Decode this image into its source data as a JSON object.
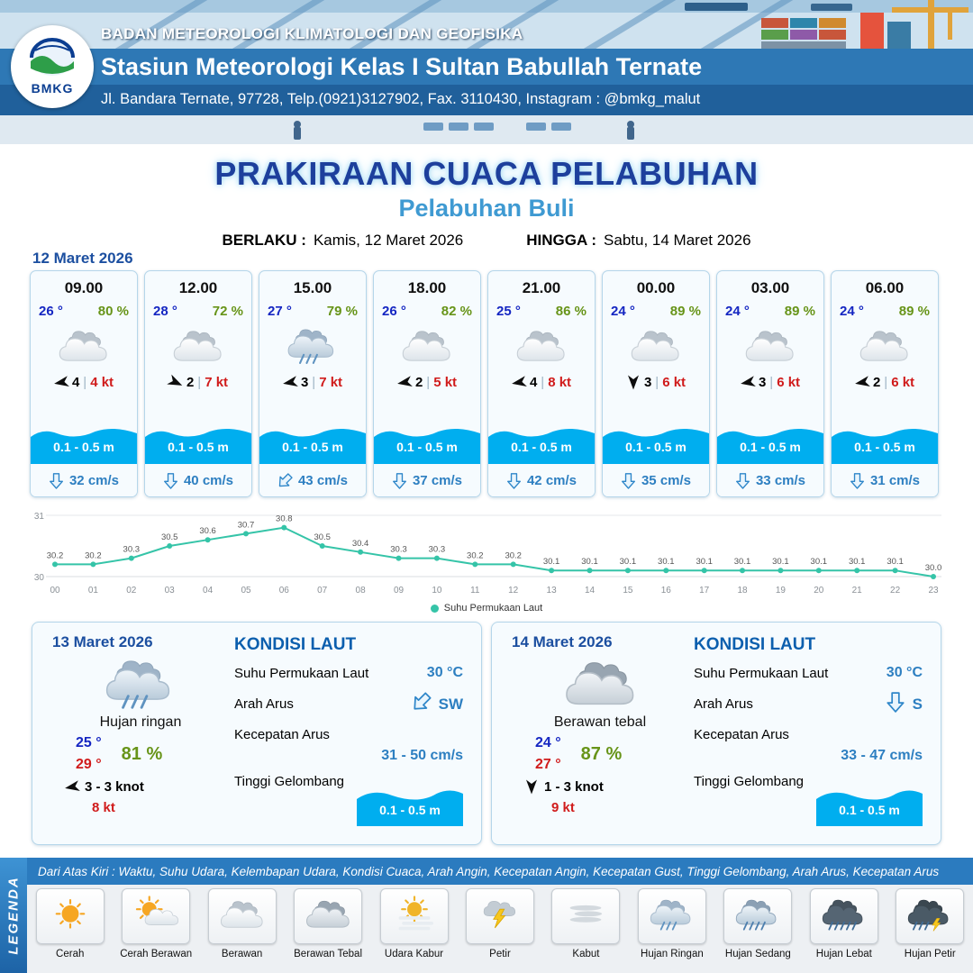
{
  "header": {
    "logo_text": "BMKG",
    "org_line": "BADAN METEOROLOGI KLIMATOLOGI DAN GEOFISIKA",
    "station_line": "Stasiun Meteorologi Kelas I Sultan Babullah Ternate",
    "address_line": "Jl. Bandara Ternate, 97728, Telp.(0921)3127902, Fax. 3110430, Instagram : @bmkg_malut"
  },
  "title": {
    "main": "PRAKIRAAN CUACA PELABUHAN",
    "subtitle": "Pelabuhan Buli",
    "berlaku_label": "BERLAKU :",
    "berlaku_value": "Kamis, 12 Maret 2026",
    "hingga_label": "HINGGA :",
    "hingga_value": "Sabtu, 14 Maret 2026"
  },
  "forecast_date": "12 Maret 2026",
  "hourly": [
    {
      "time": "09.00",
      "temp": "26 °",
      "humidity": "80 %",
      "icon": "berawan",
      "wind_num": "4",
      "wind_kt": "4 kt",
      "wind_dir_deg": 170,
      "wave": "0.1 - 0.5 m",
      "current": "32 cm/s",
      "current_dir_deg": 0
    },
    {
      "time": "12.00",
      "temp": "28 °",
      "humidity": "72 %",
      "icon": "berawan",
      "wind_num": "2",
      "wind_kt": "7 kt",
      "wind_dir_deg": 25,
      "wave": "0.1 - 0.5 m",
      "current": "40 cm/s",
      "current_dir_deg": 0
    },
    {
      "time": "15.00",
      "temp": "27 °",
      "humidity": "79 %",
      "icon": "hujan-ringan",
      "wind_num": "3",
      "wind_kt": "7 kt",
      "wind_dir_deg": 170,
      "wave": "0.1 - 0.5 m",
      "current": "43 cm/s",
      "current_dir_deg": 45
    },
    {
      "time": "18.00",
      "temp": "26 °",
      "humidity": "82 %",
      "icon": "berawan",
      "wind_num": "2",
      "wind_kt": "5 kt",
      "wind_dir_deg": 170,
      "wave": "0.1 - 0.5 m",
      "current": "37 cm/s",
      "current_dir_deg": 0
    },
    {
      "time": "21.00",
      "temp": "25 °",
      "humidity": "86 %",
      "icon": "berawan",
      "wind_num": "4",
      "wind_kt": "8 kt",
      "wind_dir_deg": 170,
      "wave": "0.1 - 0.5 m",
      "current": "42 cm/s",
      "current_dir_deg": 0
    },
    {
      "time": "00.00",
      "temp": "24 °",
      "humidity": "89 %",
      "icon": "berawan",
      "wind_num": "3",
      "wind_kt": "6 kt",
      "wind_dir_deg": 90,
      "wave": "0.1 - 0.5 m",
      "current": "35 cm/s",
      "current_dir_deg": 0
    },
    {
      "time": "03.00",
      "temp": "24 °",
      "humidity": "89 %",
      "icon": "berawan",
      "wind_num": "3",
      "wind_kt": "6 kt",
      "wind_dir_deg": 170,
      "wave": "0.1 - 0.5 m",
      "current": "33 cm/s",
      "current_dir_deg": 0
    },
    {
      "time": "06.00",
      "temp": "24 °",
      "humidity": "89 %",
      "icon": "berawan",
      "wind_num": "2",
      "wind_kt": "6 kt",
      "wind_dir_deg": 170,
      "wave": "0.1 - 0.5 m",
      "current": "31 cm/s",
      "current_dir_deg": 0
    }
  ],
  "chart_data": {
    "type": "line",
    "series_name": "Suhu Permukaan Laut",
    "x": [
      "00",
      "01",
      "02",
      "03",
      "04",
      "05",
      "06",
      "07",
      "08",
      "09",
      "10",
      "11",
      "12",
      "13",
      "14",
      "15",
      "16",
      "17",
      "18",
      "19",
      "20",
      "21",
      "22",
      "23"
    ],
    "values": [
      30.2,
      30.2,
      30.3,
      30.5,
      30.6,
      30.7,
      30.8,
      30.5,
      30.4,
      30.3,
      30.3,
      30.2,
      30.2,
      30.1,
      30.1,
      30.1,
      30.1,
      30.1,
      30.1,
      30.1,
      30.1,
      30.1,
      30.1,
      30.0
    ],
    "ylim": [
      30,
      31
    ],
    "line_color": "#35c4a8",
    "legend_position": "bottom"
  },
  "daily": [
    {
      "date": "13 Maret 2026",
      "icon": "hujan-ringan",
      "condition": "Hujan ringan",
      "temp_min": "25 °",
      "temp_max": "29 °",
      "humidity": "81 %",
      "wind": "3 - 3 knot",
      "gust": "8 kt",
      "wind_dir_deg": 170,
      "sea": {
        "heading": "KONDISI LAUT",
        "sst_label": "Suhu Permukaan Laut",
        "sst": "30 °C",
        "arus_label": "Arah Arus",
        "arus_dir": "SW",
        "arus_deg": 45,
        "kec_label": "Kecepatan Arus",
        "kec": "31 - 50 cm/s",
        "gel_label": "Tinggi Gelombang",
        "gel": "0.1 - 0.5 m"
      }
    },
    {
      "date": "14 Maret 2026",
      "icon": "berawan-tebal",
      "condition": "Berawan tebal",
      "temp_min": "24 °",
      "temp_max": "27 °",
      "humidity": "87 %",
      "wind": "1 - 3 knot",
      "gust": "9 kt",
      "wind_dir_deg": 90,
      "sea": {
        "heading": "KONDISI LAUT",
        "sst_label": "Suhu Permukaan Laut",
        "sst": "30 °C",
        "arus_label": "Arah Arus",
        "arus_dir": "S",
        "arus_deg": 0,
        "kec_label": "Kecepatan Arus",
        "kec": "33 - 47 cm/s",
        "gel_label": "Tinggi Gelombang",
        "gel": "0.1 - 0.5 m"
      }
    }
  ],
  "legend": {
    "vertical_label": "LEGENDA",
    "description": "Dari Atas Kiri : Waktu, Suhu Udara, Kelembapan Udara, Kondisi Cuaca, Arah Angin, Kecepatan Angin, Kecepatan Gust, Tinggi Gelombang, Arah Arus, Kecepatan Arus",
    "items": [
      {
        "label": "Cerah",
        "icon": "cerah"
      },
      {
        "label": "Cerah Berawan",
        "icon": "cerah-berawan"
      },
      {
        "label": "Berawan",
        "icon": "berawan"
      },
      {
        "label": "Berawan Tebal",
        "icon": "berawan-tebal"
      },
      {
        "label": "Udara Kabur",
        "icon": "udara-kabur"
      },
      {
        "label": "Petir",
        "icon": "petir"
      },
      {
        "label": "Kabut",
        "icon": "kabut"
      },
      {
        "label": "Hujan Ringan",
        "icon": "hujan-ringan"
      },
      {
        "label": "Hujan Sedang",
        "icon": "hujan-sedang"
      },
      {
        "label": "Hujan Lebat",
        "icon": "hujan-lebat"
      },
      {
        "label": "Hujan Petir",
        "icon": "hujan-petir"
      }
    ]
  },
  "colors": {
    "accent_blue": "#1c4fa0",
    "temp_blue": "#1526c2",
    "humidity_green": "#679418",
    "speed_red": "#d01b1b",
    "wave_blue": "#00aeef",
    "current_blue": "#2d7fc1",
    "sst_line": "#35c4a8"
  }
}
